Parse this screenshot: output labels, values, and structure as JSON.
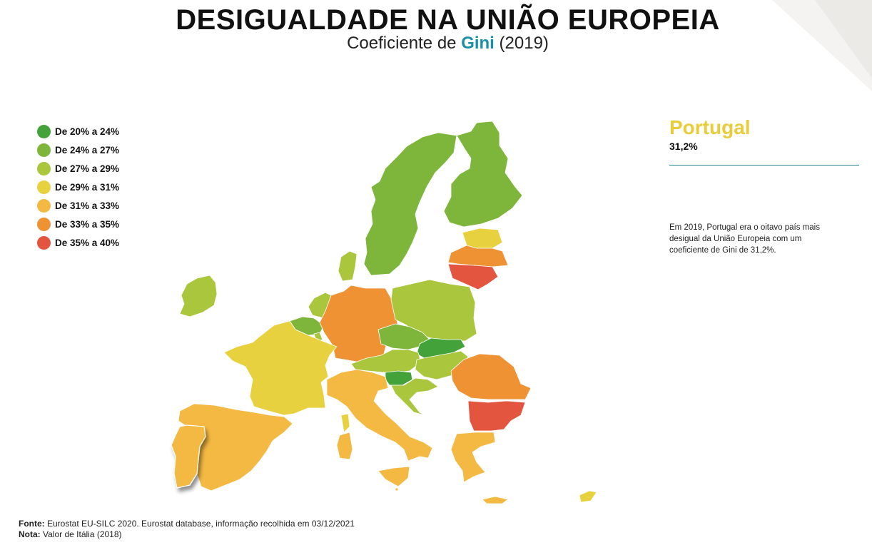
{
  "title": "DESIGUALDADE NA UNIÃO EUROPEIA",
  "subtitle": {
    "prefix": "Coeficiente de ",
    "highlight": "Gini",
    "suffix": " (2019)"
  },
  "colors": {
    "bin_20_24": "#43a33a",
    "bin_24_27": "#7db63a",
    "bin_27_29": "#a9c63d",
    "bin_29_31": "#e8d13e",
    "bin_31_33": "#f4b942",
    "bin_33_35": "#ef9234",
    "bin_35_40": "#e3553e",
    "accent_teal": "#1a8fa8"
  },
  "legend": [
    {
      "label": "De 20% a 24%",
      "color": "#43a33a"
    },
    {
      "label": "De 24% a 27%",
      "color": "#7db63a"
    },
    {
      "label": "De 27% a 29%",
      "color": "#a9c63d"
    },
    {
      "label": "De 29% a 31%",
      "color": "#e8d13e"
    },
    {
      "label": "De 31% a 33%",
      "color": "#f4b942"
    },
    {
      "label": "De 33% a 35%",
      "color": "#ef9234"
    },
    {
      "label": "De 35% a 40%",
      "color": "#e3553e"
    }
  ],
  "highlight": {
    "country": "Portugal",
    "value": "31,2%",
    "description": "Em 2019, Portugal era o oitavo país mais desigual da União Europeia com um coeficiente de Gini de 31,2%."
  },
  "footer": {
    "source_label": "Fonte:",
    "source_text": " Eurostat EU-SILC 2020. Eurostat database, informação recolhida em 03/12/2021",
    "note_label": "Nota:",
    "note_text": " Valor de Itália (2018)"
  }
}
